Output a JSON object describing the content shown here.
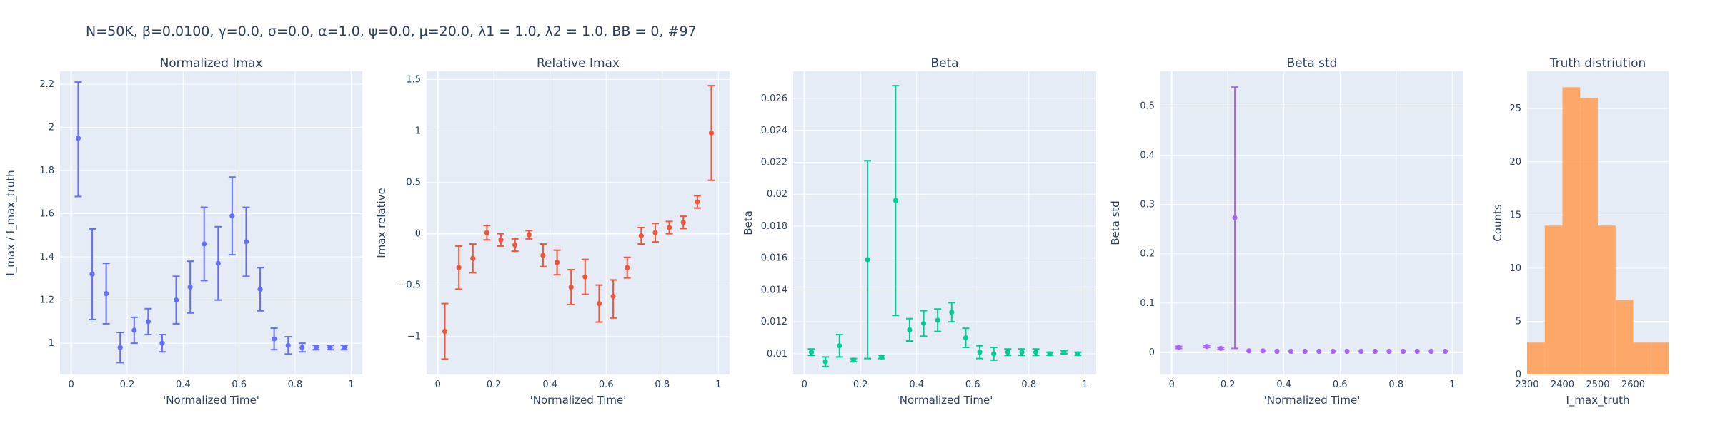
{
  "page": {
    "title": "N=50K, β=0.0100, γ=0.0, σ=0.0,  α=1.0, ψ=0.0, μ=20.0, λ1 = 1.0, λ2 = 1.0, BB = 0, #97"
  },
  "chart_data": [
    {
      "type": "scatter",
      "title": "Normalized Imax",
      "xlabel": "'Normalized Time'",
      "ylabel": "I_max / I_max_truth",
      "color": "#636efa",
      "xlim": [
        -0.04,
        1.04
      ],
      "ylim": [
        0.855,
        2.26
      ],
      "xticks": [
        0,
        0.2,
        0.4,
        0.6,
        0.8,
        1
      ],
      "xtick_labels": [
        "0",
        "0.2",
        "0.4",
        "0.6",
        "0.8",
        "1"
      ],
      "yticks": [
        1,
        1.2,
        1.4,
        1.6,
        1.8,
        2,
        2.2
      ],
      "ytick_labels": [
        "1",
        "1.2",
        "1.4",
        "1.6",
        "1.8",
        "2",
        "2.2"
      ],
      "x": [
        0.025,
        0.075,
        0.125,
        0.175,
        0.225,
        0.275,
        0.325,
        0.375,
        0.425,
        0.475,
        0.525,
        0.575,
        0.625,
        0.675,
        0.725,
        0.775,
        0.825,
        0.875,
        0.925,
        0.975
      ],
      "y": [
        1.95,
        1.32,
        1.23,
        0.98,
        1.06,
        1.1,
        1.0,
        1.2,
        1.26,
        1.46,
        1.37,
        1.59,
        1.47,
        1.25,
        1.02,
        0.99,
        0.98,
        0.98,
        0.98,
        0.98
      ],
      "err_plus": [
        0.26,
        0.21,
        0.14,
        0.07,
        0.06,
        0.06,
        0.04,
        0.11,
        0.12,
        0.17,
        0.17,
        0.18,
        0.16,
        0.1,
        0.05,
        0.04,
        0.02,
        0.01,
        0.01,
        0.01
      ],
      "err_minus": [
        0.27,
        0.21,
        0.14,
        0.07,
        0.06,
        0.06,
        0.04,
        0.11,
        0.12,
        0.17,
        0.17,
        0.18,
        0.16,
        0.1,
        0.05,
        0.04,
        0.02,
        0.01,
        0.01,
        0.01
      ]
    },
    {
      "type": "scatter",
      "title": "Relative Imax",
      "xlabel": "'Normalized Time'",
      "ylabel": "Imax relative",
      "color": "#ef553b",
      "xlim": [
        -0.04,
        1.04
      ],
      "ylim": [
        -1.37,
        1.58
      ],
      "xticks": [
        0,
        0.2,
        0.4,
        0.6,
        0.8,
        1
      ],
      "xtick_labels": [
        "0",
        "0.2",
        "0.4",
        "0.6",
        "0.8",
        "1"
      ],
      "yticks": [
        -1,
        -0.5,
        0,
        0.5,
        1,
        1.5
      ],
      "ytick_labels": [
        "−1",
        "−0.5",
        "0",
        "0.5",
        "1",
        "1.5"
      ],
      "x": [
        0.025,
        0.075,
        0.125,
        0.175,
        0.225,
        0.275,
        0.325,
        0.375,
        0.425,
        0.475,
        0.525,
        0.575,
        0.625,
        0.675,
        0.725,
        0.775,
        0.825,
        0.875,
        0.925,
        0.975
      ],
      "y": [
        -0.95,
        -0.33,
        -0.24,
        0.01,
        -0.06,
        -0.11,
        -0.01,
        -0.21,
        -0.28,
        -0.52,
        -0.42,
        -0.68,
        -0.61,
        -0.33,
        -0.02,
        0.01,
        0.06,
        0.11,
        0.31,
        0.98
      ],
      "err_plus": [
        0.27,
        0.21,
        0.14,
        0.07,
        0.06,
        0.06,
        0.04,
        0.11,
        0.12,
        0.17,
        0.17,
        0.18,
        0.16,
        0.1,
        0.08,
        0.09,
        0.06,
        0.06,
        0.06,
        0.46
      ],
      "err_minus": [
        0.27,
        0.21,
        0.14,
        0.07,
        0.06,
        0.06,
        0.04,
        0.11,
        0.12,
        0.17,
        0.17,
        0.18,
        0.21,
        0.1,
        0.08,
        0.09,
        0.06,
        0.06,
        0.06,
        0.46
      ]
    },
    {
      "type": "scatter",
      "title": "Beta",
      "xlabel": "'Normalized Time'",
      "ylabel": "Beta",
      "color": "#00cc96",
      "xlim": [
        -0.04,
        1.04
      ],
      "ylim": [
        0.0087,
        0.0277
      ],
      "xticks": [
        0,
        0.2,
        0.4,
        0.6,
        0.8,
        1
      ],
      "xtick_labels": [
        "0",
        "0.2",
        "0.4",
        "0.6",
        "0.8",
        "1"
      ],
      "yticks": [
        0.01,
        0.012,
        0.014,
        0.016,
        0.018,
        0.02,
        0.022,
        0.024,
        0.026
      ],
      "ytick_labels": [
        "0.01",
        "0.012",
        "0.014",
        "0.016",
        "0.018",
        "0.02",
        "0.022",
        "0.024",
        "0.026"
      ],
      "x": [
        0.025,
        0.075,
        0.125,
        0.175,
        0.275,
        0.375,
        0.425,
        0.475,
        0.525,
        0.575,
        0.625,
        0.675,
        0.725,
        0.775,
        0.825,
        0.875,
        0.925,
        0.975,
        0.225,
        0.325
      ],
      "y": [
        0.0101,
        0.0095,
        0.0105,
        0.0096,
        0.0098,
        0.0115,
        0.0119,
        0.0121,
        0.0126,
        0.011,
        0.0101,
        0.01,
        0.0101,
        0.0101,
        0.0101,
        0.01,
        0.0101,
        0.01,
        0.0159,
        0.0196
      ],
      "err_plus": [
        0.0002,
        0.0003,
        0.0007,
        0.0001,
        0.0001,
        0.0007,
        0.0008,
        0.0007,
        0.0006,
        0.0006,
        0.0004,
        0.0004,
        0.0002,
        0.0002,
        0.0002,
        0.0001,
        0.0001,
        0.0001,
        0.0062,
        0.0072
      ],
      "err_minus": [
        0.0002,
        0.0003,
        0.0007,
        0.0001,
        0.0001,
        0.0007,
        0.0008,
        0.0007,
        0.0006,
        0.0006,
        0.0004,
        0.0004,
        0.0002,
        0.0002,
        0.0002,
        0.0001,
        0.0001,
        0.0001,
        0.0062,
        0.0072
      ]
    },
    {
      "type": "scatter",
      "title": "Beta std",
      "xlabel": "'Normalized Time'",
      "ylabel": "Beta std",
      "color": "#ab63fa",
      "xlim": [
        -0.04,
        1.04
      ],
      "ylim": [
        -0.045,
        0.57
      ],
      "xticks": [
        0,
        0.2,
        0.4,
        0.6,
        0.8,
        1
      ],
      "xtick_labels": [
        "0",
        "0.2",
        "0.4",
        "0.6",
        "0.8",
        "1"
      ],
      "yticks": [
        0,
        0.1,
        0.2,
        0.3,
        0.4,
        0.5
      ],
      "ytick_labels": [
        "0",
        "0.1",
        "0.2",
        "0.3",
        "0.4",
        "0.5"
      ],
      "x": [
        0.025,
        0.125,
        0.175,
        0.275,
        0.325,
        0.375,
        0.425,
        0.475,
        0.525,
        0.575,
        0.625,
        0.675,
        0.725,
        0.775,
        0.825,
        0.875,
        0.925,
        0.975,
        0.225
      ],
      "y": [
        0.01,
        0.012,
        0.008,
        0.003,
        0.003,
        0.002,
        0.002,
        0.002,
        0.002,
        0.002,
        0.002,
        0.002,
        0.002,
        0.002,
        0.002,
        0.002,
        0.002,
        0.002,
        0.273
      ],
      "err_plus": [
        0.002,
        0.002,
        0.002,
        0,
        0,
        0,
        0,
        0,
        0,
        0,
        0,
        0,
        0,
        0,
        0,
        0,
        0,
        0,
        0.265
      ],
      "err_minus": [
        0.002,
        0.002,
        0.002,
        0,
        0,
        0,
        0,
        0,
        0,
        0,
        0,
        0,
        0,
        0,
        0,
        0,
        0,
        0,
        0.265
      ]
    },
    {
      "type": "histogram",
      "title": "Truth distriution",
      "xlabel": "I_max_truth",
      "ylabel": "Counts",
      "color": "#ffa15a",
      "xlim": [
        2300,
        2700
      ],
      "ylim": [
        0,
        28.5
      ],
      "xticks": [
        2300,
        2400,
        2500,
        2600
      ],
      "xtick_labels": [
        "2300",
        "2400",
        "2500",
        "2600"
      ],
      "yticks": [
        0,
        5,
        10,
        15,
        20,
        25
      ],
      "ytick_labels": [
        "0",
        "5",
        "10",
        "15",
        "20",
        "25"
      ],
      "bin_edges": [
        2300,
        2350,
        2400,
        2450,
        2500,
        2550,
        2600,
        2650,
        2700
      ],
      "counts": [
        3,
        14,
        27,
        26,
        14,
        7,
        3,
        3
      ]
    }
  ]
}
